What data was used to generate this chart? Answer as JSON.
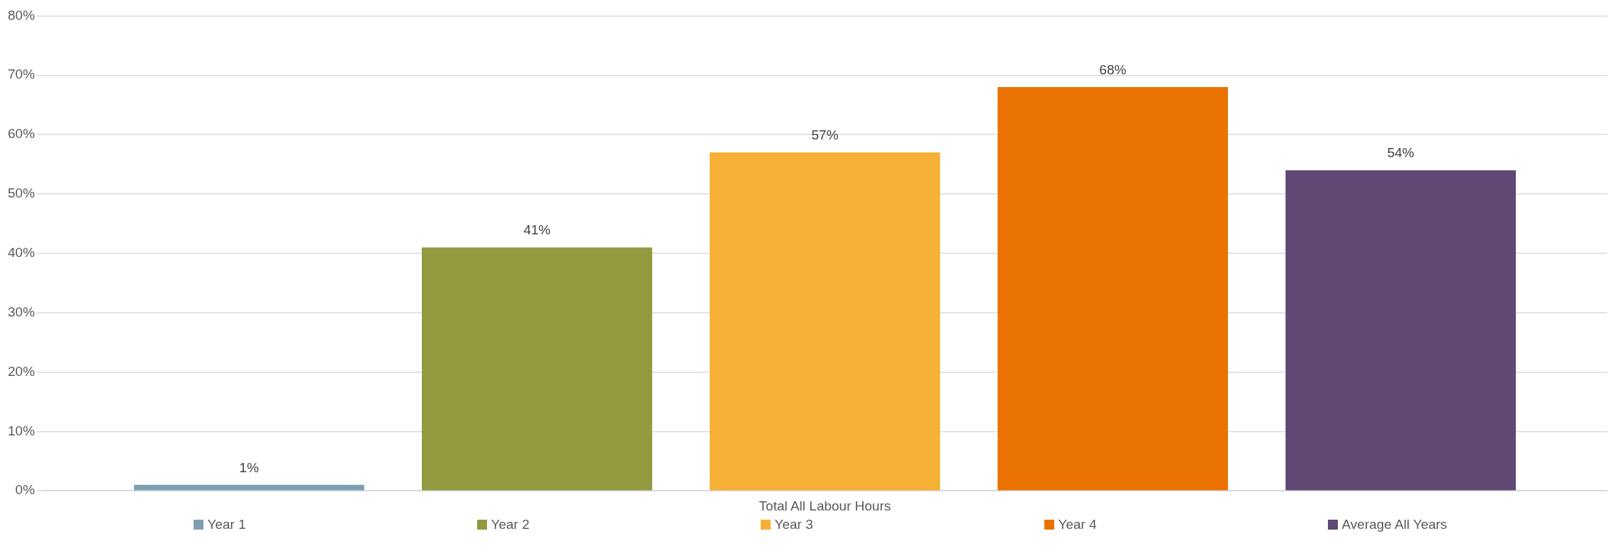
{
  "chart_data": {
    "type": "bar",
    "categories": [
      "Total All Labour Hours"
    ],
    "series": [
      {
        "name": "Year 1",
        "color": "#7e9eb2",
        "values": [
          1
        ],
        "value_labels": [
          "1%"
        ]
      },
      {
        "name": "Year 2",
        "color": "#92993f",
        "values": [
          41
        ],
        "value_labels": [
          "41%"
        ]
      },
      {
        "name": "Year 3",
        "color": "#f6b035",
        "values": [
          57
        ],
        "value_labels": [
          "57%"
        ]
      },
      {
        "name": "Year 4",
        "color": "#e97200",
        "values": [
          68
        ],
        "value_labels": [
          "68%"
        ]
      },
      {
        "name": "Average All Years",
        "color": "#5f4874",
        "values": [
          54
        ],
        "value_labels": [
          "54%"
        ]
      }
    ],
    "ylim": [
      0,
      80
    ],
    "yticks": [
      {
        "value": 0,
        "label": "0%"
      },
      {
        "value": 10,
        "label": "10%"
      },
      {
        "value": 20,
        "label": "20%"
      },
      {
        "value": 30,
        "label": "30%"
      },
      {
        "value": 40,
        "label": "40%"
      },
      {
        "value": 50,
        "label": "50%"
      },
      {
        "value": 60,
        "label": "60%"
      },
      {
        "value": 70,
        "label": "70%"
      },
      {
        "value": 80,
        "label": "80%"
      }
    ],
    "grid": "y",
    "legend": "bottom"
  }
}
